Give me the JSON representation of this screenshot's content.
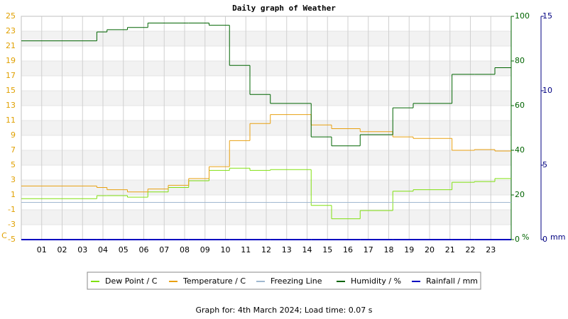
{
  "chart_data": {
    "type": "step",
    "title": "Daily graph of Weather",
    "x": [
      0,
      3.7,
      4.2,
      5.2,
      6.2,
      7.2,
      8.2,
      9.2,
      10.2,
      11.2,
      12.2,
      14.2,
      15.2,
      16.6,
      18.2,
      19.2,
      21.1,
      22.2,
      23.2
    ],
    "xlim": [
      0,
      24
    ],
    "xticks": [
      {
        "value": 1,
        "label": "01"
      },
      {
        "value": 2,
        "label": "02"
      },
      {
        "value": 3,
        "label": "03"
      },
      {
        "value": 4,
        "label": "04"
      },
      {
        "value": 5,
        "label": "05"
      },
      {
        "value": 6,
        "label": "06"
      },
      {
        "value": 7,
        "label": "07"
      },
      {
        "value": 8,
        "label": "08"
      },
      {
        "value": 9,
        "label": "09"
      },
      10,
      11,
      12,
      13,
      14,
      15,
      16,
      17,
      18,
      19,
      20,
      21,
      22,
      23
    ],
    "ylim": [
      -5,
      25
    ],
    "yticks": [
      -5,
      -3,
      -1,
      1,
      3,
      5,
      7,
      9,
      11,
      13,
      15,
      17,
      19,
      21,
      23,
      25
    ],
    "y_unit": "C",
    "y2lim": [
      0,
      100
    ],
    "y2ticks": [
      0,
      20,
      40,
      60,
      80,
      100
    ],
    "y2_unit": "%",
    "y3lim": [
      0,
      15
    ],
    "y3ticks": [
      0,
      5,
      10,
      15
    ],
    "y3_unit": "mm",
    "grid": true,
    "series": [
      {
        "name": "Dew Point / C",
        "color": "#80e010",
        "values": [
          0.5,
          0.9,
          0.9,
          0.7,
          1.4,
          2.0,
          2.9,
          4.3,
          4.6,
          4.3,
          4.4,
          -0.4,
          -2.2,
          -1.1,
          1.5,
          1.7,
          2.7,
          2.8,
          3.2
        ]
      },
      {
        "name": "Temperature / C",
        "color": "#e8a010",
        "values": [
          2.2,
          2.0,
          1.7,
          1.4,
          1.8,
          2.3,
          3.2,
          4.8,
          8.3,
          10.6,
          11.8,
          10.4,
          9.9,
          9.5,
          8.8,
          8.6,
          7.0,
          7.1,
          6.9
        ]
      },
      {
        "name": "Freezing Line",
        "color": "#a0b8d0",
        "values": [
          0,
          0,
          0,
          0,
          0,
          0,
          0,
          0,
          0,
          0,
          0,
          0,
          0,
          0,
          0,
          0,
          0,
          0,
          0
        ]
      },
      {
        "name": "Humidity / %",
        "color": "#006400",
        "axis": "y2",
        "values": [
          89,
          93,
          94,
          95,
          97,
          97,
          97,
          96,
          78,
          65,
          61,
          46,
          42,
          47,
          59,
          61,
          74,
          74,
          77
        ]
      },
      {
        "name": "Rainfall / mm",
        "color": "#0000c0",
        "axis": "y3",
        "values": [
          0,
          0,
          0,
          0,
          0,
          0,
          0,
          0,
          0,
          0,
          0,
          0,
          0,
          0,
          0,
          0,
          0,
          0,
          0
        ]
      }
    ],
    "footer": "Graph for: 4th March 2024; Load time: 0.07 s"
  }
}
